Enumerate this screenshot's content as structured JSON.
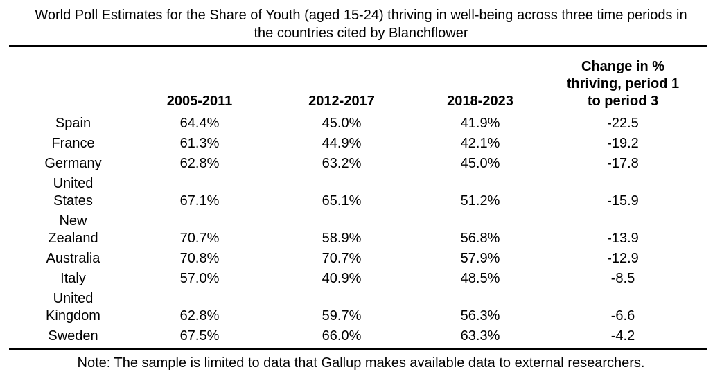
{
  "colors": {
    "background": "#ffffff",
    "text": "#000000",
    "rule": "#000000"
  },
  "chart_data": {
    "type": "table",
    "title": "World Poll Estimates for the Share of Youth (aged 15-24) thriving in well-being across three time periods in the countries cited by Blanchflower",
    "columns": [
      "",
      "2005-2011",
      "2012-2017",
      "2018-2023",
      "Change in % thriving, period 1 to period 3"
    ],
    "rows": [
      [
        "Spain",
        "64.4%",
        "45.0%",
        "41.9%",
        "-22.5"
      ],
      [
        "France",
        "61.3%",
        "44.9%",
        "42.1%",
        "-19.2"
      ],
      [
        "Germany",
        "62.8%",
        "63.2%",
        "45.0%",
        "-17.8"
      ],
      [
        "United States",
        "67.1%",
        "65.1%",
        "51.2%",
        "-15.9"
      ],
      [
        "New Zealand",
        "70.7%",
        "58.9%",
        "56.8%",
        "-13.9"
      ],
      [
        "Australia",
        "70.8%",
        "70.7%",
        "57.9%",
        "-12.9"
      ],
      [
        "Italy",
        "57.0%",
        "40.9%",
        "48.5%",
        "-8.5"
      ],
      [
        "United Kingdom",
        "62.8%",
        "59.7%",
        "56.3%",
        "-6.6"
      ],
      [
        "Sweden",
        "67.5%",
        "66.0%",
        "63.3%",
        "-4.2"
      ]
    ],
    "note": "Note: The sample is limited to data that Gallup makes available data to external researchers."
  }
}
